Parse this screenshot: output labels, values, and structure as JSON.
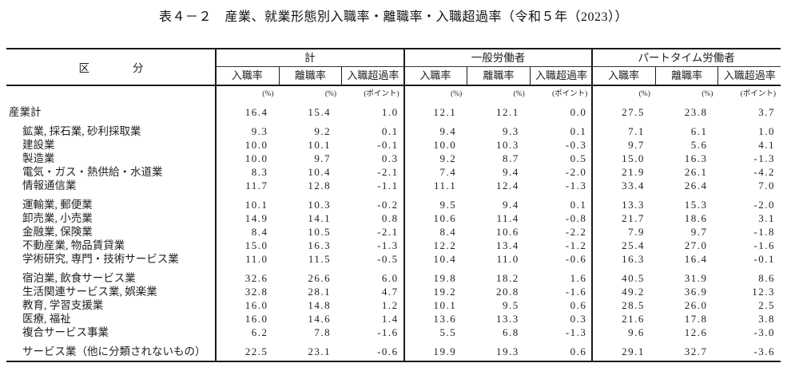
{
  "title": "表４－２　産業、就業形態別入職率・離職率・入職超過率（令和５年（2023））",
  "table": {
    "corner_header": "区　　　　分",
    "groups": [
      {
        "label": "計"
      },
      {
        "label": "一般労働者"
      },
      {
        "label": "パートタイム労働者"
      }
    ],
    "sub_headers": [
      "入職率",
      "離職率",
      "入職超過率"
    ],
    "units": [
      "(%)",
      "(%)",
      "(ポイント)"
    ],
    "row_groups": [
      {
        "rows": [
          {
            "label": "産業計",
            "indent": false,
            "values": [
              "16.4",
              "15.4",
              "1.0",
              "12.1",
              "12.1",
              "0.0",
              "27.5",
              "23.8",
              "3.7"
            ]
          }
        ]
      },
      {
        "rows": [
          {
            "label": "鉱業, 採石業, 砂利採取業",
            "indent": true,
            "values": [
              "9.3",
              "9.2",
              "0.1",
              "9.4",
              "9.3",
              "0.1",
              "7.1",
              "6.1",
              "1.0"
            ]
          },
          {
            "label": "建設業",
            "indent": true,
            "values": [
              "10.0",
              "10.1",
              "-0.1",
              "10.0",
              "10.3",
              "-0.3",
              "9.7",
              "5.6",
              "4.1"
            ]
          },
          {
            "label": "製造業",
            "indent": true,
            "values": [
              "10.0",
              "9.7",
              "0.3",
              "9.2",
              "8.7",
              "0.5",
              "15.0",
              "16.3",
              "-1.3"
            ]
          },
          {
            "label": "電気・ガス・熱供給・水道業",
            "indent": true,
            "values": [
              "8.3",
              "10.4",
              "-2.1",
              "7.4",
              "9.4",
              "-2.0",
              "21.9",
              "26.1",
              "-4.2"
            ]
          },
          {
            "label": "情報通信業",
            "indent": true,
            "values": [
              "11.7",
              "12.8",
              "-1.1",
              "11.1",
              "12.4",
              "-1.3",
              "33.4",
              "26.4",
              "7.0"
            ]
          }
        ]
      },
      {
        "rows": [
          {
            "label": "運輸業, 郵便業",
            "indent": true,
            "values": [
              "10.1",
              "10.3",
              "-0.2",
              "9.5",
              "9.4",
              "0.1",
              "13.3",
              "15.3",
              "-2.0"
            ]
          },
          {
            "label": "卸売業, 小売業",
            "indent": true,
            "values": [
              "14.9",
              "14.1",
              "0.8",
              "10.6",
              "11.4",
              "-0.8",
              "21.7",
              "18.6",
              "3.1"
            ]
          },
          {
            "label": "金融業, 保険業",
            "indent": true,
            "values": [
              "8.4",
              "10.5",
              "-2.1",
              "8.4",
              "10.6",
              "-2.2",
              "7.9",
              "9.7",
              "-1.8"
            ]
          },
          {
            "label": "不動産業, 物品賃貸業",
            "indent": true,
            "values": [
              "15.0",
              "16.3",
              "-1.3",
              "12.2",
              "13.4",
              "-1.2",
              "25.4",
              "27.0",
              "-1.6"
            ]
          },
          {
            "label": "学術研究, 専門・技術サービス業",
            "indent": true,
            "values": [
              "11.0",
              "11.5",
              "-0.5",
              "10.4",
              "11.0",
              "-0.6",
              "16.3",
              "16.4",
              "-0.1"
            ]
          }
        ]
      },
      {
        "rows": [
          {
            "label": "宿泊業, 飲食サービス業",
            "indent": true,
            "values": [
              "32.6",
              "26.6",
              "6.0",
              "19.8",
              "18.2",
              "1.6",
              "40.5",
              "31.9",
              "8.6"
            ]
          },
          {
            "label": "生活関連サービス業, 娯楽業",
            "indent": true,
            "values": [
              "32.8",
              "28.1",
              "4.7",
              "19.2",
              "20.8",
              "-1.6",
              "49.2",
              "36.9",
              "12.3"
            ]
          },
          {
            "label": "教育, 学習支援業",
            "indent": true,
            "values": [
              "16.0",
              "14.8",
              "1.2",
              "10.1",
              "9.5",
              "0.6",
              "28.5",
              "26.0",
              "2.5"
            ]
          },
          {
            "label": "医療, 福祉",
            "indent": true,
            "values": [
              "16.0",
              "14.6",
              "1.4",
              "13.6",
              "13.3",
              "0.3",
              "21.6",
              "17.8",
              "3.8"
            ]
          },
          {
            "label": "複合サービス事業",
            "indent": true,
            "values": [
              "6.2",
              "7.8",
              "-1.6",
              "5.5",
              "6.8",
              "-1.3",
              "9.6",
              "12.6",
              "-3.0"
            ]
          }
        ]
      },
      {
        "rows": [
          {
            "label": "サービス業（他に分類されないもの）",
            "indent": true,
            "values": [
              "22.5",
              "23.1",
              "-0.6",
              "19.9",
              "19.3",
              "0.6",
              "29.1",
              "32.7",
              "-3.6"
            ]
          }
        ]
      }
    ]
  }
}
